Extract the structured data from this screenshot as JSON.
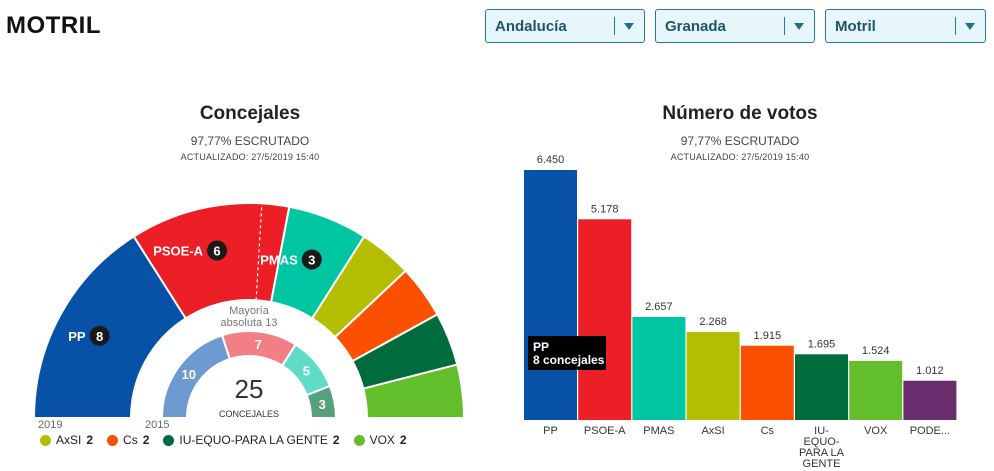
{
  "page": {
    "title": "MOTRIL"
  },
  "selectors": [
    {
      "value": "Andalucía"
    },
    {
      "value": "Granada"
    },
    {
      "value": "Motril"
    }
  ],
  "concejales": {
    "title": "Concejales",
    "status": "97,77% ESCRUTADO",
    "updated": "ACTUALIZADO: 27/5/2019 15:40",
    "year_2019": "2019",
    "year_2015": "2015",
    "majority_label": "Mayoría absoluta 13",
    "total": "25",
    "total_label": "CONCEJALES",
    "legend": [
      {
        "name": "AxSI",
        "seats": "2",
        "color": "#b5bd00"
      },
      {
        "name": "Cs",
        "seats": "2",
        "color": "#fa5000"
      },
      {
        "name": "IU-EQUO-PARA LA GENTE",
        "seats": "2",
        "color": "#006b3c"
      },
      {
        "name": "VOX",
        "seats": "2",
        "color": "#63be2b"
      }
    ]
  },
  "votos": {
    "title": "Número de votos",
    "status": "97,77% ESCRUTADO",
    "updated": "ACTUALIZADO: 27/5/2019 15:40",
    "tooltip_party": "PP",
    "tooltip_detail": "8 concejales"
  },
  "chart_data": [
    {
      "type": "pie",
      "title": "Concejales",
      "series": [
        {
          "name": "2019",
          "slices": [
            {
              "label": "PP",
              "value": 8,
              "color": "#0751a7"
            },
            {
              "label": "PSOE-A",
              "value": 6,
              "color": "#ec1e26"
            },
            {
              "label": "PMAS",
              "value": 3,
              "color": "#00c5a3"
            },
            {
              "label": "AxSI",
              "value": 2,
              "color": "#b5bd00"
            },
            {
              "label": "Cs",
              "value": 2,
              "color": "#fa5000"
            },
            {
              "label": "IU-EQUO-PARA LA GENTE",
              "value": 2,
              "color": "#006b3c"
            },
            {
              "label": "VOX",
              "value": 2,
              "color": "#63be2b"
            }
          ]
        },
        {
          "name": "2015",
          "slices": [
            {
              "label": "PP",
              "value": 10,
              "color": "#6d9ad0"
            },
            {
              "label": "PSOE-A",
              "value": 7,
              "color": "#f27f85"
            },
            {
              "label": "PMAS",
              "value": 5,
              "color": "#5edcc7"
            },
            {
              "label": "IU-EQUO-PARA LA GENTE",
              "value": 3,
              "color": "#57a07c"
            }
          ]
        }
      ],
      "total": 25,
      "majority": 13
    },
    {
      "type": "bar",
      "title": "Número de votos",
      "categories": [
        "PP",
        "PSOE-A",
        "PMAS",
        "AxSI",
        "Cs",
        "IU-EQUO-PARA LA GENTE",
        "VOX",
        "PODE..."
      ],
      "values": [
        6450,
        5178,
        2657,
        2268,
        1915,
        1695,
        1524,
        1012
      ],
      "value_labels": [
        "6.450",
        "5.178",
        "2.657",
        "2.268",
        "1.915",
        "1.695",
        "1.524",
        "1.012"
      ],
      "colors": [
        "#0751a7",
        "#ec1e26",
        "#00c5a3",
        "#b5bd00",
        "#fa5000",
        "#006b3c",
        "#63be2b",
        "#6b2c6e"
      ],
      "tick_lines": [
        [
          "PP"
        ],
        [
          "PSOE-A"
        ],
        [
          "PMAS"
        ],
        [
          "AxSI"
        ],
        [
          "Cs"
        ],
        [
          "IU-",
          "EQUO-",
          "PARA LA",
          "GENTE"
        ],
        [
          "VOX"
        ],
        [
          "PODE..."
        ]
      ],
      "ylim": [
        0,
        6450
      ]
    }
  ]
}
